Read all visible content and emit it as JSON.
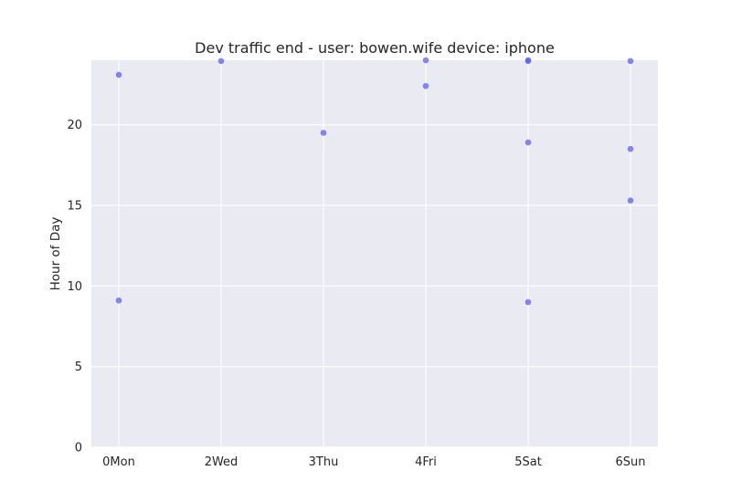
{
  "chart_data": {
    "type": "scatter",
    "title": "Dev traffic end - user: bowen.wife device: iphone",
    "xlabel": "",
    "ylabel": "Hour of Day",
    "categories": [
      "0Mon",
      "2Wed",
      "3Thu",
      "4Fri",
      "5Sat",
      "6Sun"
    ],
    "ylim": [
      0,
      24
    ],
    "yticks": [
      0,
      5,
      10,
      15,
      20
    ],
    "grid": true,
    "colors": {
      "background": "#EAEAF2",
      "point": "#5B5FF0",
      "grid": "#FFFFFF"
    },
    "points": [
      {
        "x": "0Mon",
        "y": 23.1
      },
      {
        "x": "0Mon",
        "y": 9.1
      },
      {
        "x": "2Wed",
        "y": 23.95
      },
      {
        "x": "3Thu",
        "y": 19.5
      },
      {
        "x": "4Fri",
        "y": 24.0
      },
      {
        "x": "4Fri",
        "y": 22.4
      },
      {
        "x": "5Sat",
        "y": 24.0
      },
      {
        "x": "5Sat",
        "y": 23.95
      },
      {
        "x": "5Sat",
        "y": 18.9
      },
      {
        "x": "5Sat",
        "y": 9.0
      },
      {
        "x": "6Sun",
        "y": 23.95
      },
      {
        "x": "6Sun",
        "y": 18.5
      },
      {
        "x": "6Sun",
        "y": 15.3
      }
    ]
  }
}
